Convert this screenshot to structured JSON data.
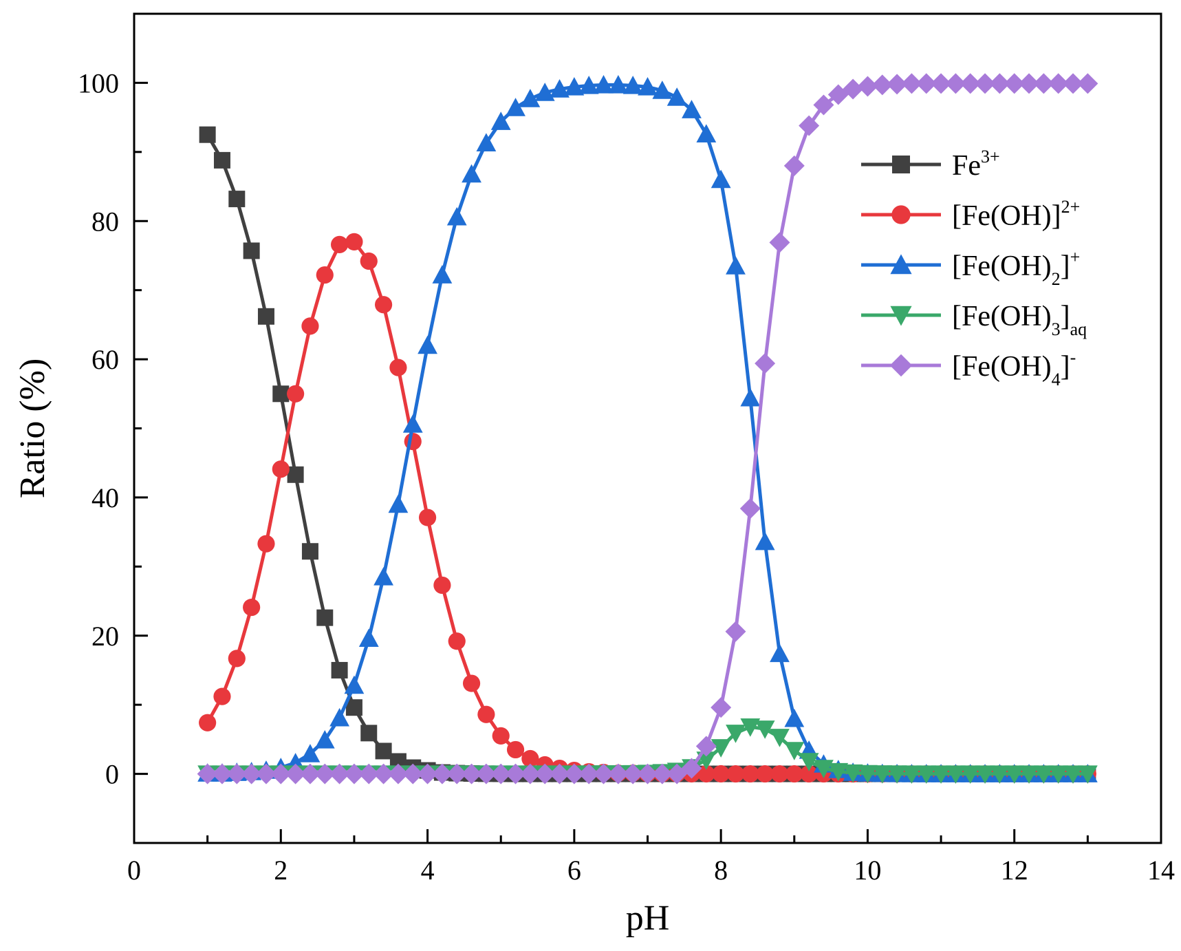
{
  "chart_data": {
    "type": "line",
    "title": "",
    "xlabel": "pH",
    "ylabel": "Ratio (%)",
    "xlim": [
      0,
      14
    ],
    "ylim": [
      -10,
      110
    ],
    "xticks": [
      "0",
      "2",
      "4",
      "6",
      "8",
      "10",
      "12",
      "14"
    ],
    "yticks": [
      "0",
      "20",
      "40",
      "60",
      "80",
      "100"
    ],
    "grid": false,
    "legend_position": "right",
    "x": [
      1.0,
      1.2,
      1.4,
      1.6,
      1.8,
      2.0,
      2.2,
      2.4,
      2.6,
      2.8,
      3.0,
      3.2,
      3.4,
      3.6,
      3.8,
      4.0,
      4.2,
      4.4,
      4.6,
      4.8,
      5.0,
      5.2,
      5.4,
      5.6,
      5.8,
      6.0,
      6.2,
      6.4,
      6.6,
      6.8,
      7.0,
      7.2,
      7.4,
      7.6,
      7.8,
      8.0,
      8.2,
      8.4,
      8.6,
      8.8,
      9.0,
      9.2,
      9.4,
      9.6,
      9.8,
      10.0,
      10.2,
      10.4,
      10.6,
      10.8,
      11.0,
      11.2,
      11.4,
      11.6,
      11.8,
      12.0,
      12.2,
      12.4,
      12.6,
      12.8,
      13.0
    ],
    "series": [
      {
        "name": "Fe3+",
        "label_base": "Fe",
        "label_sup": "3+",
        "label_sub": "",
        "label_tail": "",
        "label_tail_sup": "",
        "color": "#404040",
        "marker": "square",
        "values": [
          92.5,
          88.8,
          83.2,
          75.7,
          66.2,
          55.0,
          43.3,
          32.2,
          22.6,
          15.0,
          9.6,
          5.9,
          3.3,
          1.8,
          0.9,
          0.5,
          0.2,
          0.1,
          0.05,
          0.02,
          0.01,
          0,
          0,
          0,
          0,
          0,
          0,
          0,
          0,
          0,
          0,
          0,
          0,
          0,
          0,
          0,
          0,
          0,
          0,
          0,
          0,
          0,
          0,
          0,
          0,
          0,
          0,
          0,
          0,
          0,
          0,
          0,
          0,
          0,
          0,
          0,
          0,
          0,
          0,
          0,
          0
        ]
      },
      {
        "name": "[Fe(OH)]2+",
        "label_base": "[Fe(OH)]",
        "label_sup": "2+",
        "label_sub": "",
        "label_tail": "",
        "label_tail_sup": "",
        "color": "#e8383d",
        "marker": "circle",
        "values": [
          7.4,
          11.2,
          16.7,
          24.1,
          33.3,
          44.1,
          55.0,
          64.8,
          72.2,
          76.6,
          77.0,
          74.2,
          67.9,
          58.8,
          48.1,
          37.1,
          27.3,
          19.2,
          13.1,
          8.6,
          5.5,
          3.5,
          2.2,
          1.3,
          0.8,
          0.5,
          0.3,
          0.2,
          0.1,
          0.1,
          0.05,
          0.03,
          0.02,
          0.01,
          0.01,
          0.01,
          0,
          0,
          0,
          0,
          0,
          0,
          0,
          0,
          0,
          0,
          0,
          0,
          0,
          0,
          0,
          0,
          0,
          0,
          0,
          0,
          0,
          0,
          0,
          0,
          0
        ]
      },
      {
        "name": "[Fe(OH)2]+",
        "label_base": "[Fe(OH)",
        "label_sup": "",
        "label_sub": "2",
        "label_tail": "]",
        "label_tail_sup": "+",
        "color": "#1f6ed4",
        "marker": "triangle-up",
        "values": [
          0.1,
          0.1,
          0.2,
          0.3,
          0.5,
          0.9,
          1.6,
          2.9,
          4.9,
          8.1,
          12.8,
          19.6,
          28.5,
          39.0,
          50.6,
          62.0,
          72.2,
          80.6,
          86.8,
          91.3,
          94.4,
          96.4,
          97.7,
          98.6,
          99.1,
          99.4,
          99.6,
          99.7,
          99.7,
          99.6,
          99.4,
          98.9,
          97.9,
          96.1,
          92.6,
          86.0,
          73.5,
          54.4,
          33.6,
          17.4,
          8.0,
          3.4,
          1.4,
          0.6,
          0.2,
          0.1,
          0.04,
          0.02,
          0.01,
          0,
          0,
          0,
          0,
          0,
          0,
          0,
          0,
          0,
          0,
          0,
          0
        ]
      },
      {
        "name": "[Fe(OH)3]aq",
        "label_base": "[Fe(OH)",
        "label_sup": "",
        "label_sub": "3",
        "label_tail": "]",
        "label_tail_sub": "aq",
        "label_tail_sup": "",
        "color": "#3aa86a",
        "marker": "triangle-down",
        "values": [
          0,
          0,
          0,
          0,
          0,
          0,
          0,
          0,
          0,
          0,
          0,
          0,
          0,
          0,
          0,
          0,
          0,
          0,
          0,
          0,
          0,
          0,
          0,
          0,
          0,
          0,
          0.01,
          0.02,
          0.03,
          0.05,
          0.1,
          0.2,
          0.4,
          0.9,
          2.0,
          3.8,
          5.9,
          6.8,
          6.5,
          5.3,
          3.4,
          1.8,
          0.8,
          0.35,
          0.15,
          0.06,
          0.02,
          0.01,
          0,
          0,
          0,
          0,
          0,
          0,
          0,
          0,
          0,
          0,
          0,
          0,
          0
        ]
      },
      {
        "name": "[Fe(OH)4]-",
        "label_base": "[Fe(OH)",
        "label_sup": "",
        "label_sub": "4",
        "label_tail": "]",
        "label_tail_sup": "-",
        "color": "#a87ad9",
        "marker": "diamond",
        "values": [
          0,
          0,
          0,
          0,
          0,
          0,
          0,
          0,
          0,
          0,
          0,
          0,
          0,
          0,
          0,
          0,
          0,
          0,
          0,
          0,
          0,
          0,
          0,
          0,
          0,
          0,
          0,
          0,
          0,
          0,
          0,
          0,
          0,
          0.8,
          4.0,
          9.6,
          20.6,
          38.4,
          59.4,
          76.9,
          88.0,
          93.8,
          96.8,
          98.3,
          99.1,
          99.5,
          99.7,
          99.8,
          99.9,
          99.9,
          99.9,
          99.9,
          99.9,
          99.9,
          99.9,
          99.9,
          99.9,
          99.9,
          99.9,
          99.9,
          99.9
        ]
      }
    ]
  }
}
